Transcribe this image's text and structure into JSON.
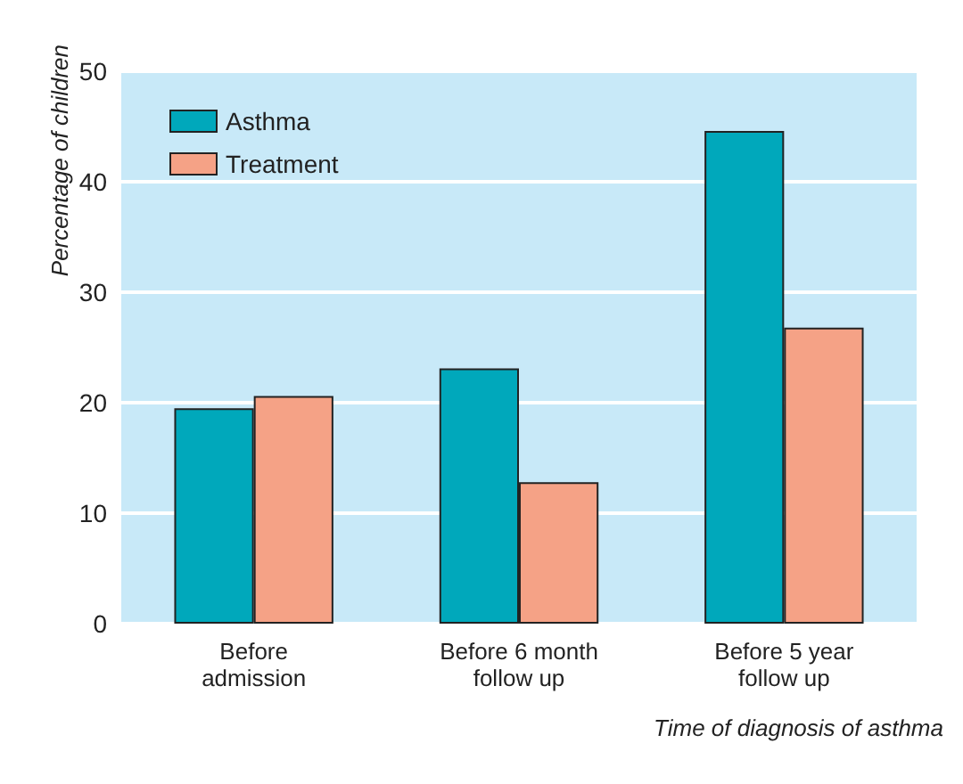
{
  "chart_data": {
    "type": "bar",
    "xlabel": "Time of diagnosis of asthma",
    "ylabel": "Percentage of children",
    "categories": [
      "Before\nadmission",
      "Before 6 month\nfollow up",
      "Before 5 year\nfollow up"
    ],
    "series": [
      {
        "name": "Asthma",
        "color": "#00a8bb",
        "values": [
          19.5,
          23.1,
          44.6
        ]
      },
      {
        "name": "Treatment",
        "color": "#f5a286",
        "values": [
          20.6,
          12.8,
          26.8
        ]
      }
    ],
    "ylim": [
      0,
      50
    ],
    "yticks": [
      0,
      10,
      20,
      30,
      40,
      50
    ],
    "grid": "y",
    "legend": "top left"
  }
}
